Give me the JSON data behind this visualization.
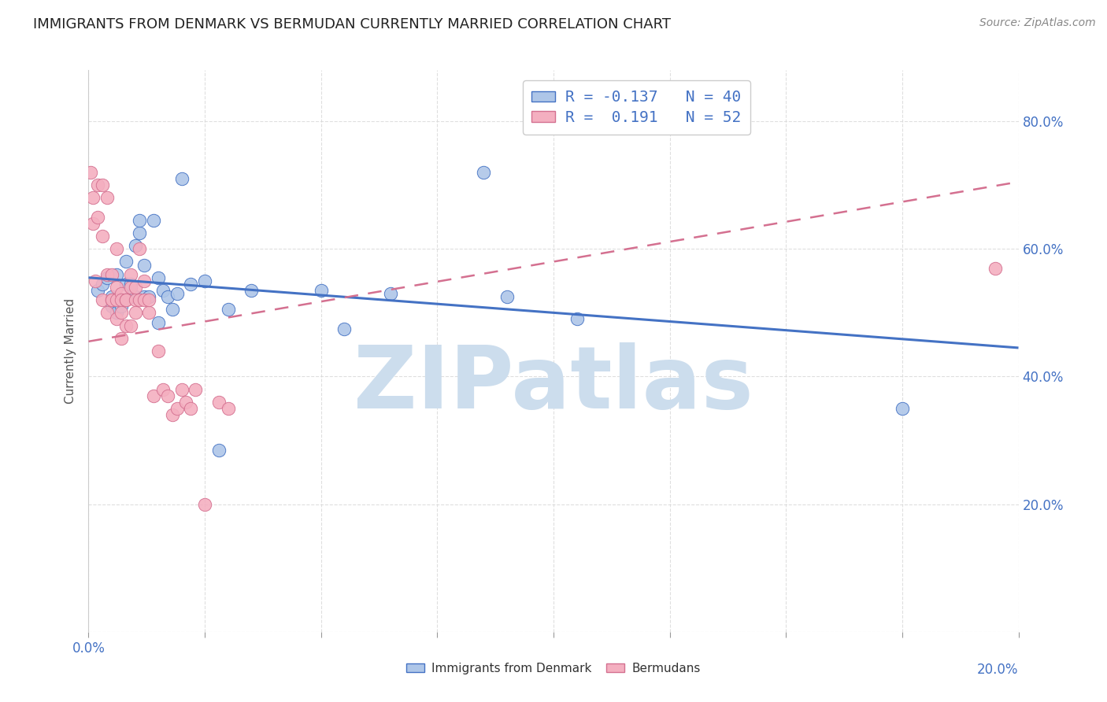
{
  "title": "IMMIGRANTS FROM DENMARK VS BERMUDAN CURRENTLY MARRIED CORRELATION CHART",
  "source": "Source: ZipAtlas.com",
  "ylabel": "Currently Married",
  "watermark": "ZIPatlas",
  "legend_label1": "Immigrants from Denmark",
  "legend_label2": "Bermudans",
  "R1": -0.137,
  "N1": 40,
  "R2": 0.191,
  "N2": 52,
  "color1": "#aec6e8",
  "color2": "#f4afc0",
  "trendline1_color": "#4472c4",
  "trendline2_color": "#d47090",
  "xlim": [
    0.0,
    0.2
  ],
  "ylim": [
    0.0,
    0.88
  ],
  "xticks": [
    0.0,
    0.025,
    0.05,
    0.075,
    0.1,
    0.125,
    0.15,
    0.175,
    0.2
  ],
  "yticks": [
    0.0,
    0.2,
    0.4,
    0.6,
    0.8
  ],
  "background_color": "#ffffff",
  "grid_color": "#d8d8d8",
  "title_color": "#222222",
  "tick_label_color": "#4472c4",
  "watermark_color": "#ccdded",
  "watermark_fontsize": 80,
  "scatter1_x": [
    0.002,
    0.003,
    0.004,
    0.005,
    0.005,
    0.006,
    0.006,
    0.007,
    0.007,
    0.008,
    0.008,
    0.009,
    0.009,
    0.01,
    0.01,
    0.011,
    0.011,
    0.012,
    0.012,
    0.013,
    0.014,
    0.015,
    0.015,
    0.016,
    0.017,
    0.018,
    0.019,
    0.02,
    0.022,
    0.025,
    0.028,
    0.03,
    0.035,
    0.05,
    0.055,
    0.065,
    0.085,
    0.09,
    0.105,
    0.175
  ],
  "scatter1_y": [
    0.535,
    0.545,
    0.555,
    0.525,
    0.51,
    0.5,
    0.56,
    0.52,
    0.51,
    0.545,
    0.58,
    0.545,
    0.525,
    0.525,
    0.605,
    0.625,
    0.645,
    0.525,
    0.575,
    0.525,
    0.645,
    0.555,
    0.485,
    0.535,
    0.525,
    0.505,
    0.53,
    0.71,
    0.545,
    0.55,
    0.285,
    0.505,
    0.535,
    0.535,
    0.475,
    0.53,
    0.72,
    0.525,
    0.49,
    0.35
  ],
  "scatter2_x": [
    0.0005,
    0.001,
    0.001,
    0.0015,
    0.002,
    0.002,
    0.003,
    0.003,
    0.003,
    0.004,
    0.004,
    0.004,
    0.005,
    0.005,
    0.005,
    0.006,
    0.006,
    0.006,
    0.006,
    0.007,
    0.007,
    0.007,
    0.007,
    0.008,
    0.008,
    0.008,
    0.009,
    0.009,
    0.009,
    0.01,
    0.01,
    0.01,
    0.011,
    0.011,
    0.012,
    0.012,
    0.013,
    0.013,
    0.014,
    0.015,
    0.016,
    0.017,
    0.018,
    0.019,
    0.02,
    0.021,
    0.022,
    0.023,
    0.025,
    0.028,
    0.03,
    0.195
  ],
  "scatter2_y": [
    0.72,
    0.68,
    0.64,
    0.55,
    0.65,
    0.7,
    0.62,
    0.52,
    0.7,
    0.68,
    0.56,
    0.5,
    0.52,
    0.52,
    0.56,
    0.52,
    0.54,
    0.49,
    0.6,
    0.53,
    0.52,
    0.5,
    0.46,
    0.52,
    0.48,
    0.52,
    0.48,
    0.54,
    0.56,
    0.52,
    0.54,
    0.5,
    0.52,
    0.6,
    0.55,
    0.52,
    0.5,
    0.52,
    0.37,
    0.44,
    0.38,
    0.37,
    0.34,
    0.35,
    0.38,
    0.36,
    0.35,
    0.38,
    0.2,
    0.36,
    0.35,
    0.57
  ],
  "trendline1_x": [
    0.0,
    0.2
  ],
  "trendline1_y": [
    0.555,
    0.445
  ],
  "trendline2_x": [
    0.0,
    0.2
  ],
  "trendline2_y": [
    0.455,
    0.705
  ]
}
